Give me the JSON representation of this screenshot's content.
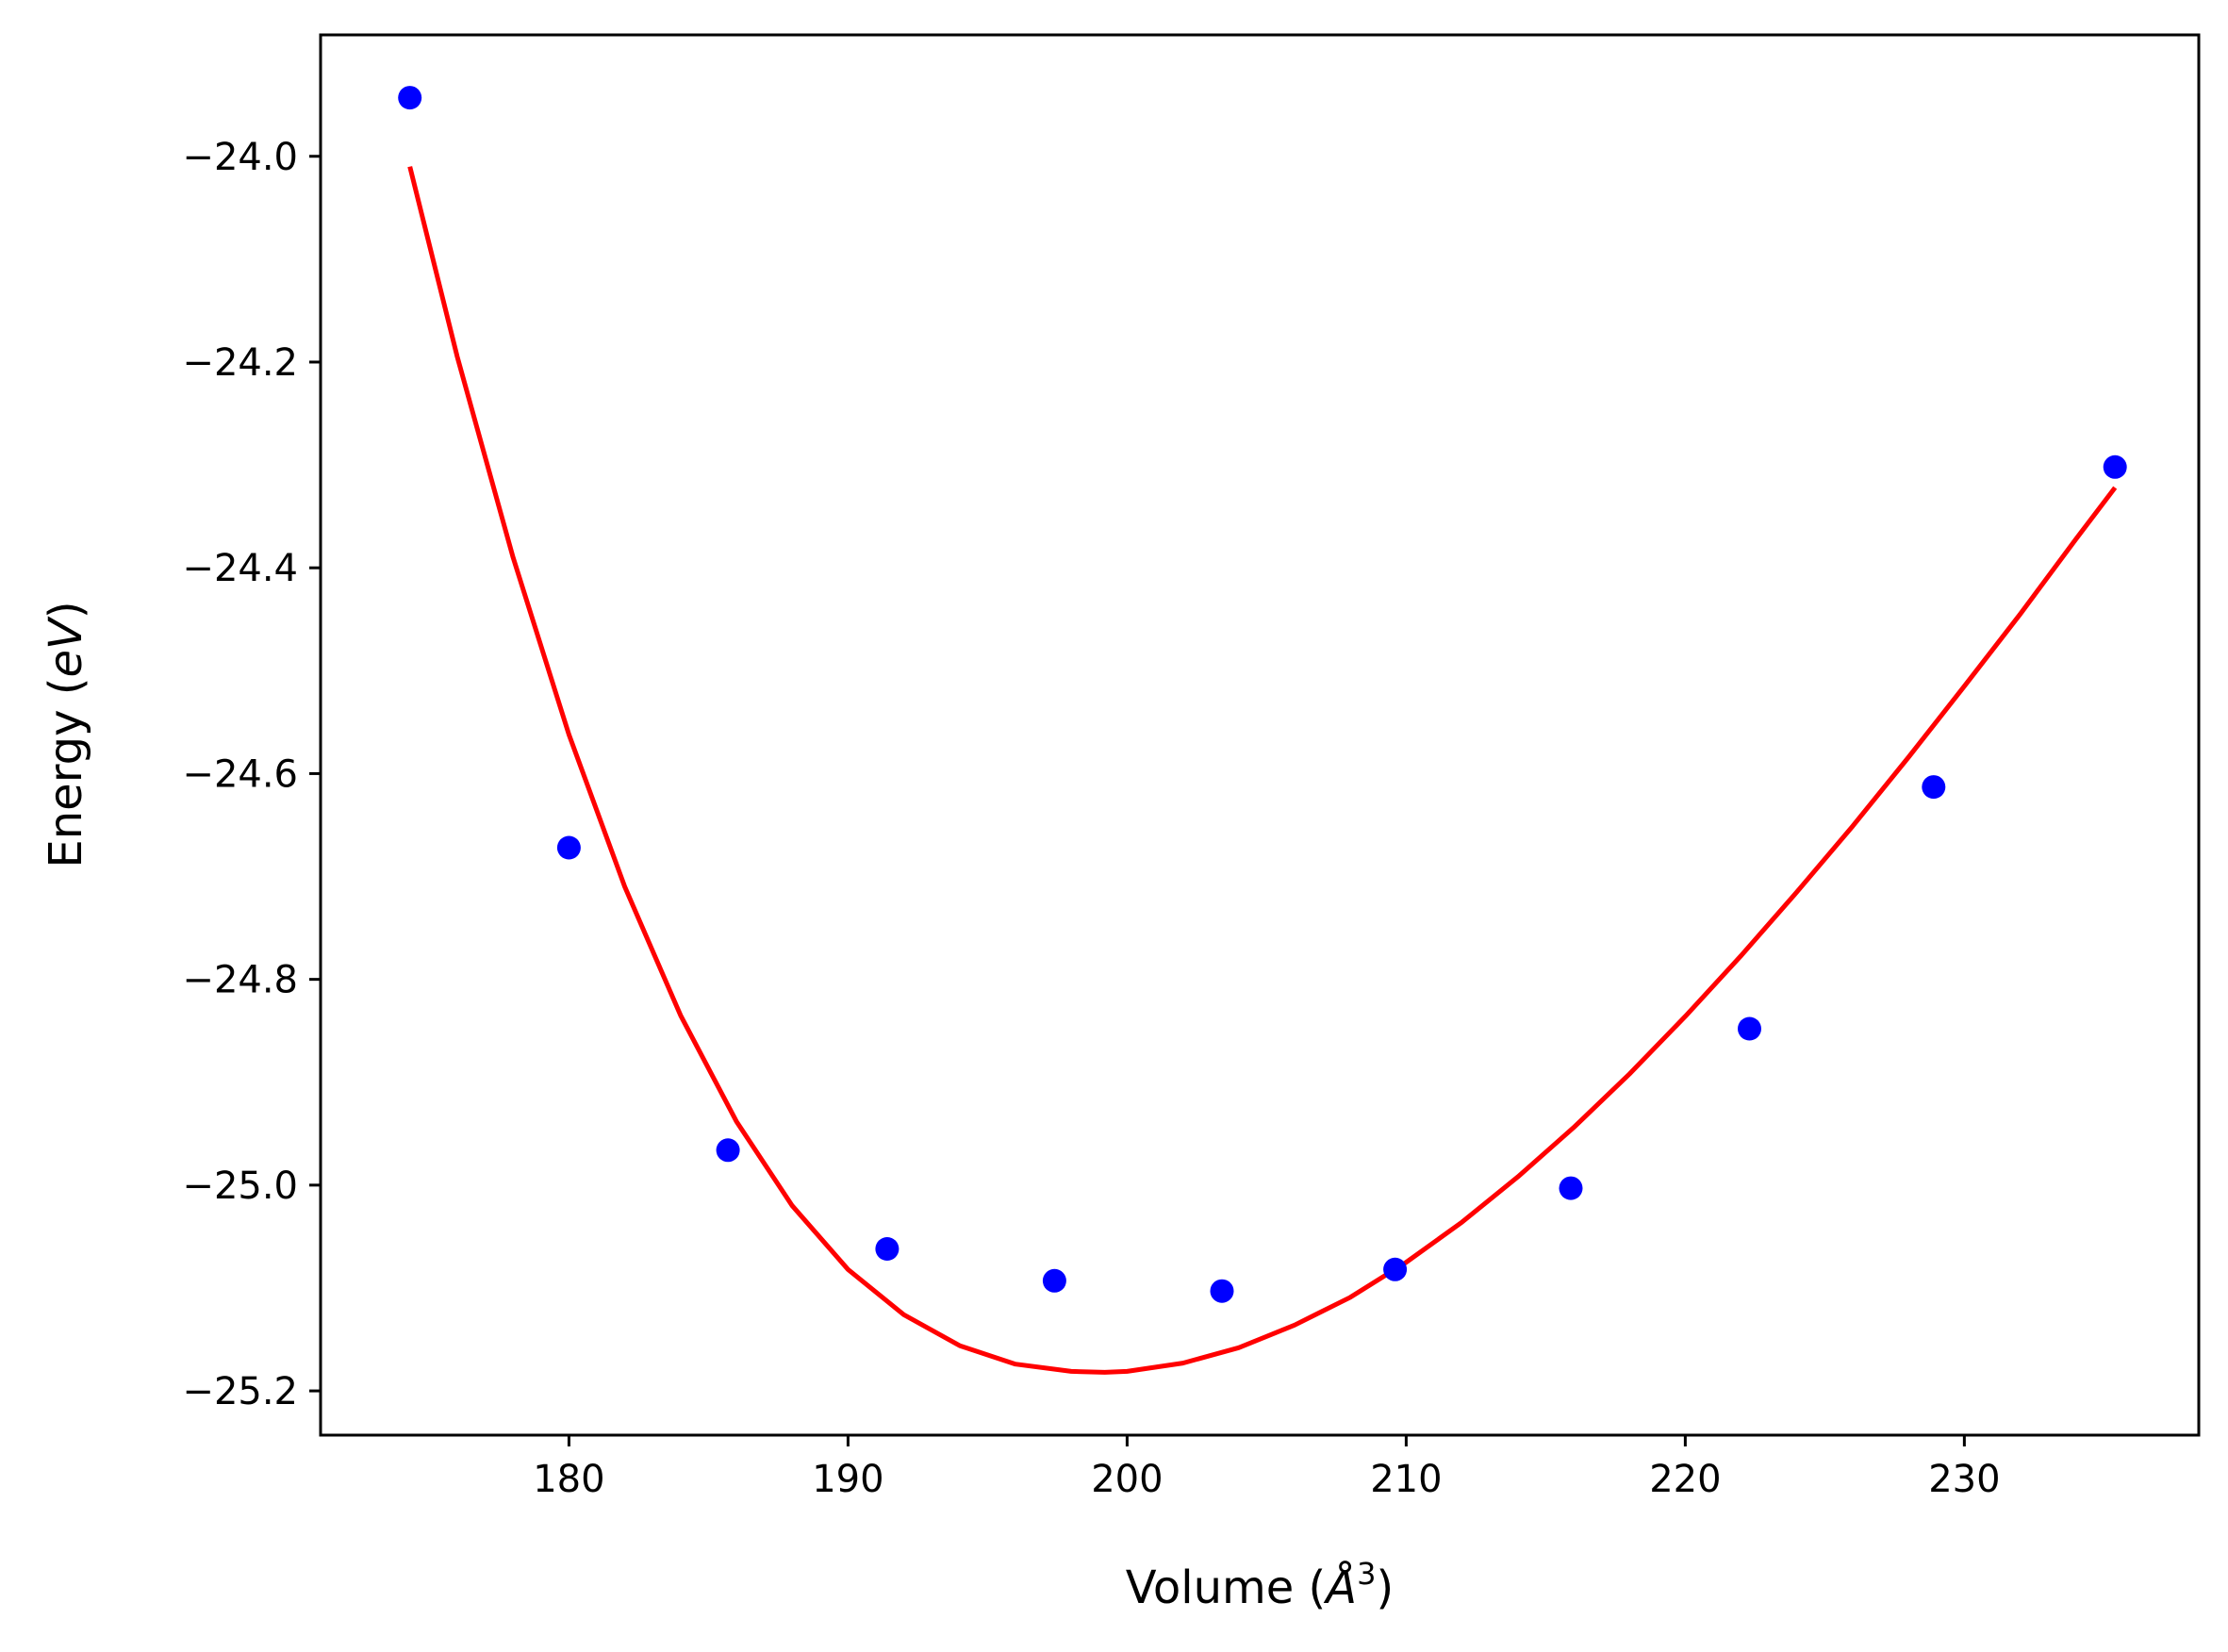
{
  "chart_data": {
    "type": "scatter",
    "xlabel": "Volume (Å³)",
    "xlabel_parts": {
      "text": "Volume (",
      "symbol": "Å",
      "exponent": "3",
      "close": ")"
    },
    "ylabel": "Energy (eV)",
    "ylabel_parts": {
      "text": "Energy (",
      "unit": "eV",
      "close": ")"
    },
    "xlim": [
      171.1,
      238.4
    ],
    "ylim": [
      -25.243,
      -23.882
    ],
    "x_ticks": [
      180,
      190,
      200,
      210,
      220,
      230
    ],
    "x_tick_labels": [
      "180",
      "190",
      "200",
      "210",
      "220",
      "230"
    ],
    "y_ticks": [
      -24.0,
      -24.2,
      -24.4,
      -24.6,
      -24.8,
      -25.0,
      -25.2
    ],
    "y_tick_labels": [
      "−24.0",
      "−24.2",
      "−24.4",
      "−24.6",
      "−24.8",
      "−25.0",
      "−25.2"
    ],
    "grid": false,
    "series": [
      {
        "kind": "scatter",
        "color": "#0000ff",
        "points": [
          {
            "x": 174.3,
            "y": -23.943
          },
          {
            "x": 180.0,
            "y": -24.672
          },
          {
            "x": 185.7,
            "y": -24.966
          },
          {
            "x": 191.4,
            "y": -25.062
          },
          {
            "x": 197.4,
            "y": -25.093
          },
          {
            "x": 203.4,
            "y": -25.103
          },
          {
            "x": 209.6,
            "y": -25.082
          },
          {
            "x": 215.9,
            "y": -25.003
          },
          {
            "x": 222.3,
            "y": -24.848
          },
          {
            "x": 228.9,
            "y": -24.613
          },
          {
            "x": 235.4,
            "y": -24.302
          }
        ]
      },
      {
        "kind": "line",
        "color": "#ff0000",
        "points": [
          {
            "x": 174.3,
            "y": -24.01
          },
          {
            "x": 176.0,
            "y": -24.195
          },
          {
            "x": 178.0,
            "y": -24.39
          },
          {
            "x": 180.0,
            "y": -24.562
          },
          {
            "x": 182.0,
            "y": -24.71
          },
          {
            "x": 184.0,
            "y": -24.835
          },
          {
            "x": 186.0,
            "y": -24.938
          },
          {
            "x": 188.0,
            "y": -25.02
          },
          {
            "x": 190.0,
            "y": -25.082
          },
          {
            "x": 192.0,
            "y": -25.126
          },
          {
            "x": 194.0,
            "y": -25.156
          },
          {
            "x": 196.0,
            "y": -25.174
          },
          {
            "x": 198.0,
            "y": -25.181
          },
          {
            "x": 199.2,
            "y": -25.182
          },
          {
            "x": 200.0,
            "y": -25.181
          },
          {
            "x": 202.0,
            "y": -25.173
          },
          {
            "x": 204.0,
            "y": -25.158
          },
          {
            "x": 206.0,
            "y": -25.136
          },
          {
            "x": 208.0,
            "y": -25.109
          },
          {
            "x": 210.0,
            "y": -25.075
          },
          {
            "x": 212.0,
            "y": -25.036
          },
          {
            "x": 214.0,
            "y": -24.992
          },
          {
            "x": 216.0,
            "y": -24.944
          },
          {
            "x": 218.0,
            "y": -24.892
          },
          {
            "x": 220.0,
            "y": -24.836
          },
          {
            "x": 222.0,
            "y": -24.777
          },
          {
            "x": 224.0,
            "y": -24.715
          },
          {
            "x": 226.0,
            "y": -24.651
          },
          {
            "x": 228.0,
            "y": -24.584
          },
          {
            "x": 230.0,
            "y": -24.515
          },
          {
            "x": 232.0,
            "y": -24.445
          },
          {
            "x": 234.0,
            "y": -24.372
          },
          {
            "x": 235.4,
            "y": -24.322
          }
        ]
      }
    ]
  }
}
